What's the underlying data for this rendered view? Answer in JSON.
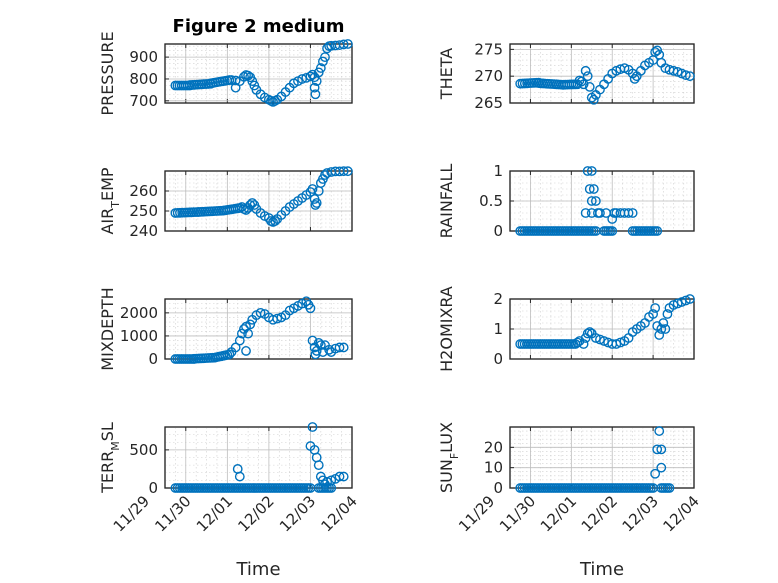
{
  "colors": {
    "marker": "#0072bd",
    "axis": "#262626",
    "grid": "#bdbdbd"
  },
  "chart_data": [
    {
      "type": "scatter",
      "title": "Figure 2 medium",
      "ylabel": "PRESSURE",
      "yticks": [
        700,
        800,
        900
      ],
      "ylim": [
        690,
        960
      ],
      "xlim": [
        0.5,
        5.0
      ],
      "xtick_values": [
        0,
        1,
        2,
        3,
        4,
        5
      ],
      "xtick_labels": [],
      "xlabel": "",
      "segments": [
        [
          0.75,
          770,
          1.1,
          770
        ],
        [
          1.1,
          772,
          1.6,
          778
        ],
        [
          1.6,
          780,
          2.05,
          795
        ]
      ],
      "points": [
        [
          2.1,
          795
        ],
        [
          2.2,
          793
        ],
        [
          2.3,
          790
        ],
        [
          2.2,
          760
        ],
        [
          2.4,
          810
        ],
        [
          2.45,
          818
        ],
        [
          2.5,
          815
        ],
        [
          2.55,
          808
        ],
        [
          2.6,
          790
        ],
        [
          2.65,
          770
        ],
        [
          2.7,
          750
        ],
        [
          2.8,
          730
        ],
        [
          2.9,
          715
        ],
        [
          3.0,
          705
        ],
        [
          3.05,
          700
        ],
        [
          3.1,
          695
        ],
        [
          3.15,
          700
        ],
        [
          3.2,
          705
        ],
        [
          3.3,
          720
        ],
        [
          3.4,
          740
        ],
        [
          3.5,
          760
        ],
        [
          3.6,
          780
        ],
        [
          3.7,
          790
        ],
        [
          3.8,
          800
        ],
        [
          3.9,
          805
        ],
        [
          4.0,
          812
        ],
        [
          4.05,
          820
        ],
        [
          4.1,
          808
        ],
        [
          4.1,
          760
        ],
        [
          4.12,
          730
        ],
        [
          4.15,
          790
        ],
        [
          4.2,
          830
        ],
        [
          4.25,
          850
        ],
        [
          4.3,
          880
        ],
        [
          4.35,
          900
        ],
        [
          4.4,
          940
        ],
        [
          4.45,
          950
        ],
        [
          4.5,
          952
        ],
        [
          4.6,
          953
        ],
        [
          4.7,
          955
        ],
        [
          4.8,
          958
        ],
        [
          4.9,
          960
        ]
      ]
    },
    {
      "type": "scatter",
      "title": "",
      "ylabel": "THETA",
      "yticks": [
        265,
        270,
        275
      ],
      "ylim": [
        265,
        276
      ],
      "xlim": [
        0.5,
        5.0
      ],
      "xtick_values": [
        0,
        1,
        2,
        3,
        4,
        5
      ],
      "xtick_labels": [],
      "xlabel": "",
      "segments": [
        [
          0.75,
          268.6,
          1.2,
          268.8
        ],
        [
          1.2,
          268.7,
          1.8,
          268.4
        ],
        [
          1.8,
          268.4,
          2.15,
          268.5
        ]
      ],
      "points": [
        [
          2.2,
          269.2
        ],
        [
          2.25,
          269
        ],
        [
          2.3,
          268.5
        ],
        [
          2.35,
          271
        ],
        [
          2.4,
          270
        ],
        [
          2.45,
          268
        ],
        [
          2.5,
          266
        ],
        [
          2.55,
          265.6
        ],
        [
          2.6,
          266.5
        ],
        [
          2.7,
          267.5
        ],
        [
          2.8,
          268.5
        ],
        [
          2.9,
          269.5
        ],
        [
          3.0,
          270.5
        ],
        [
          3.1,
          271
        ],
        [
          3.2,
          271.3
        ],
        [
          3.3,
          271.5
        ],
        [
          3.4,
          271.2
        ],
        [
          3.5,
          270.5
        ],
        [
          3.55,
          269.5
        ],
        [
          3.6,
          270
        ],
        [
          3.7,
          271
        ],
        [
          3.8,
          272
        ],
        [
          3.9,
          272.5
        ],
        [
          4.0,
          273
        ],
        [
          4.05,
          274.5
        ],
        [
          4.1,
          274.8
        ],
        [
          4.15,
          274
        ],
        [
          4.2,
          272.5
        ],
        [
          4.3,
          271.5
        ],
        [
          4.4,
          271.2
        ],
        [
          4.5,
          271
        ],
        [
          4.6,
          270.8
        ],
        [
          4.7,
          270.5
        ],
        [
          4.8,
          270.2
        ],
        [
          4.9,
          270
        ]
      ]
    },
    {
      "type": "scatter",
      "title": "",
      "ylabel": "AIR_TEMP",
      "ylabel_base": "AIR",
      "ylabel_sub": "T",
      "ylabel_rest": "EMP",
      "yticks": [
        240,
        250,
        260
      ],
      "ylim": [
        240,
        270
      ],
      "xlim": [
        0.5,
        5.0
      ],
      "xtick_values": [
        0,
        1,
        2,
        3,
        4,
        5
      ],
      "xtick_labels": [],
      "xlabel": "",
      "segments": [
        [
          0.75,
          249,
          1.3,
          249.5
        ],
        [
          1.3,
          249.5,
          1.9,
          250.2
        ],
        [
          1.9,
          250.2,
          2.3,
          251.5
        ]
      ],
      "points": [
        [
          2.35,
          252
        ],
        [
          2.4,
          251
        ],
        [
          2.45,
          250.5
        ],
        [
          2.5,
          251.5
        ],
        [
          2.55,
          253
        ],
        [
          2.6,
          254
        ],
        [
          2.65,
          253
        ],
        [
          2.7,
          251
        ],
        [
          2.8,
          249
        ],
        [
          2.9,
          247.5
        ],
        [
          3.0,
          246.5
        ],
        [
          3.05,
          245
        ],
        [
          3.1,
          244.5
        ],
        [
          3.15,
          245
        ],
        [
          3.2,
          246
        ],
        [
          3.3,
          248
        ],
        [
          3.4,
          250
        ],
        [
          3.5,
          252
        ],
        [
          3.6,
          253.5
        ],
        [
          3.7,
          255
        ],
        [
          3.8,
          256.5
        ],
        [
          3.9,
          258
        ],
        [
          4.0,
          259.5
        ],
        [
          4.05,
          261
        ],
        [
          4.1,
          256
        ],
        [
          4.12,
          253
        ],
        [
          4.15,
          254
        ],
        [
          4.2,
          260
        ],
        [
          4.25,
          264
        ],
        [
          4.3,
          266
        ],
        [
          4.35,
          268
        ],
        [
          4.4,
          269
        ],
        [
          4.5,
          269.5
        ],
        [
          4.6,
          269.8
        ],
        [
          4.7,
          269.8
        ],
        [
          4.8,
          269.9
        ],
        [
          4.9,
          269.9
        ]
      ]
    },
    {
      "type": "scatter",
      "title": "",
      "ylabel": "RAINFALL",
      "yticks": [
        0,
        0.5,
        1
      ],
      "ytick_labels": [
        "0",
        "0.5",
        "1"
      ],
      "ylim": [
        0,
        1
      ],
      "xlim": [
        0.5,
        5.0
      ],
      "xtick_values": [
        0,
        1,
        2,
        3,
        4,
        5
      ],
      "xtick_labels": [],
      "xlabel": "",
      "segments": [
        [
          0.75,
          0,
          2.6,
          0
        ],
        [
          2.8,
          0,
          3.0,
          0
        ],
        [
          3.5,
          0,
          4.1,
          0
        ]
      ],
      "points": [
        [
          2.35,
          0.3
        ],
        [
          2.4,
          1.0
        ],
        [
          2.45,
          0.7
        ],
        [
          2.5,
          1.0
        ],
        [
          2.55,
          0.7
        ],
        [
          2.5,
          0.5
        ],
        [
          2.5,
          0.3
        ],
        [
          2.6,
          0.5
        ],
        [
          2.65,
          0.3
        ],
        [
          2.7,
          0.3
        ],
        [
          2.85,
          0.3
        ],
        [
          3.0,
          0.2
        ],
        [
          3.05,
          0.3
        ],
        [
          3.1,
          0.3
        ],
        [
          3.2,
          0.3
        ],
        [
          3.3,
          0.3
        ],
        [
          3.4,
          0.3
        ],
        [
          3.5,
          0.3
        ]
      ]
    },
    {
      "type": "scatter",
      "title": "",
      "ylabel": "MIXDEPTH",
      "yticks": [
        0,
        1000,
        2000
      ],
      "ylim": [
        0,
        2600
      ],
      "xlim": [
        0.5,
        5.0
      ],
      "xtick_values": [
        0,
        1,
        2,
        3,
        4,
        5
      ],
      "xtick_labels": [],
      "xlabel": "",
      "segments": [
        [
          0.75,
          0,
          1.2,
          0
        ],
        [
          1.2,
          10,
          1.7,
          60
        ],
        [
          1.7,
          60,
          2.05,
          200
        ]
      ],
      "points": [
        [
          2.1,
          300
        ],
        [
          2.2,
          500
        ],
        [
          2.3,
          800
        ],
        [
          2.35,
          1100
        ],
        [
          2.4,
          1300
        ],
        [
          2.45,
          1400
        ],
        [
          2.5,
          1100
        ],
        [
          2.45,
          350
        ],
        [
          2.55,
          1500
        ],
        [
          2.6,
          1700
        ],
        [
          2.7,
          1900
        ],
        [
          2.8,
          2000
        ],
        [
          2.9,
          1950
        ],
        [
          3.0,
          1800
        ],
        [
          3.1,
          1700
        ],
        [
          3.2,
          1750
        ],
        [
          3.3,
          1800
        ],
        [
          3.4,
          1900
        ],
        [
          3.5,
          2100
        ],
        [
          3.6,
          2200
        ],
        [
          3.7,
          2300
        ],
        [
          3.8,
          2400
        ],
        [
          3.9,
          2500
        ],
        [
          3.95,
          2350
        ],
        [
          4.0,
          2200
        ],
        [
          4.05,
          800
        ],
        [
          4.1,
          500
        ],
        [
          4.12,
          200
        ],
        [
          4.15,
          350
        ],
        [
          4.2,
          700
        ],
        [
          4.25,
          600
        ],
        [
          4.3,
          300
        ],
        [
          4.35,
          600
        ],
        [
          4.45,
          400
        ],
        [
          4.5,
          300
        ],
        [
          4.6,
          450
        ],
        [
          4.7,
          500
        ],
        [
          4.8,
          500
        ]
      ]
    },
    {
      "type": "scatter",
      "title": "",
      "ylabel": "H2OMIXRA",
      "yticks": [
        0,
        1,
        2
      ],
      "ylim": [
        0,
        2
      ],
      "xlim": [
        0.5,
        5.0
      ],
      "xtick_values": [
        0,
        1,
        2,
        3,
        4,
        5
      ],
      "xtick_labels": [],
      "xlabel": "",
      "segments": [
        [
          0.75,
          0.5,
          2.1,
          0.5
        ]
      ],
      "points": [
        [
          2.15,
          0.55
        ],
        [
          2.2,
          0.6
        ],
        [
          2.3,
          0.5
        ],
        [
          2.35,
          0.7
        ],
        [
          2.4,
          0.85
        ],
        [
          2.45,
          0.9
        ],
        [
          2.5,
          0.85
        ],
        [
          2.6,
          0.7
        ],
        [
          2.7,
          0.65
        ],
        [
          2.8,
          0.6
        ],
        [
          2.9,
          0.55
        ],
        [
          3.0,
          0.5
        ],
        [
          3.1,
          0.5
        ],
        [
          3.2,
          0.55
        ],
        [
          3.3,
          0.6
        ],
        [
          3.4,
          0.7
        ],
        [
          3.5,
          0.9
        ],
        [
          3.6,
          1.0
        ],
        [
          3.7,
          1.1
        ],
        [
          3.8,
          1.2
        ],
        [
          3.9,
          1.4
        ],
        [
          4.0,
          1.5
        ],
        [
          4.05,
          1.7
        ],
        [
          4.1,
          1.1
        ],
        [
          4.15,
          0.8
        ],
        [
          4.2,
          1.0
        ],
        [
          4.25,
          1.2
        ],
        [
          4.3,
          1.0
        ],
        [
          4.35,
          1.5
        ],
        [
          4.4,
          1.7
        ],
        [
          4.5,
          1.8
        ],
        [
          4.6,
          1.85
        ],
        [
          4.7,
          1.9
        ],
        [
          4.8,
          1.95
        ],
        [
          4.9,
          2.0
        ]
      ]
    },
    {
      "type": "scatter",
      "title": "",
      "ylabel": "TERR_MSL",
      "ylabel_base": "TERR",
      "ylabel_sub": "M",
      "ylabel_rest": "SL",
      "yticks": [
        0,
        500
      ],
      "ylim": [
        0,
        800
      ],
      "xlim": [
        0.5,
        5.0
      ],
      "xtick_values": [
        0,
        1,
        2,
        3,
        4,
        5
      ],
      "xtick_labels": [
        "11/29",
        "11/30",
        "12/01",
        "12/02",
        "12/03",
        "12/04"
      ],
      "xlabel": "Time",
      "segments": [
        [
          0.75,
          0,
          4.0,
          0
        ],
        [
          4.2,
          0,
          4.5,
          0
        ]
      ],
      "points": [
        [
          2.25,
          250
        ],
        [
          2.3,
          150
        ],
        [
          4.0,
          550
        ],
        [
          4.05,
          800
        ],
        [
          4.1,
          500
        ],
        [
          4.15,
          400
        ],
        [
          4.2,
          300
        ],
        [
          4.25,
          150
        ],
        [
          4.3,
          100
        ],
        [
          4.35,
          50
        ],
        [
          4.4,
          80
        ],
        [
          4.5,
          100
        ],
        [
          4.6,
          120
        ],
        [
          4.7,
          150
        ],
        [
          4.8,
          150
        ]
      ]
    },
    {
      "type": "scatter",
      "title": "",
      "ylabel": "SUN_FLUX",
      "ylabel_base": "SUN",
      "ylabel_sub": "F",
      "ylabel_rest": "LUX",
      "yticks": [
        0,
        10,
        20
      ],
      "ylim": [
        0,
        30
      ],
      "xlim": [
        0.5,
        5.0
      ],
      "xtick_values": [
        0,
        1,
        2,
        3,
        4,
        5
      ],
      "xtick_labels": [
        "11/29",
        "11/30",
        "12/01",
        "12/02",
        "12/03",
        "12/04"
      ],
      "xlabel": "Time",
      "segments": [
        [
          0.75,
          0,
          4.0,
          0
        ],
        [
          4.2,
          0,
          4.4,
          0
        ]
      ],
      "points": [
        [
          4.05,
          7
        ],
        [
          4.1,
          19
        ],
        [
          4.15,
          28
        ],
        [
          4.2,
          19
        ],
        [
          4.2,
          10
        ]
      ]
    }
  ]
}
